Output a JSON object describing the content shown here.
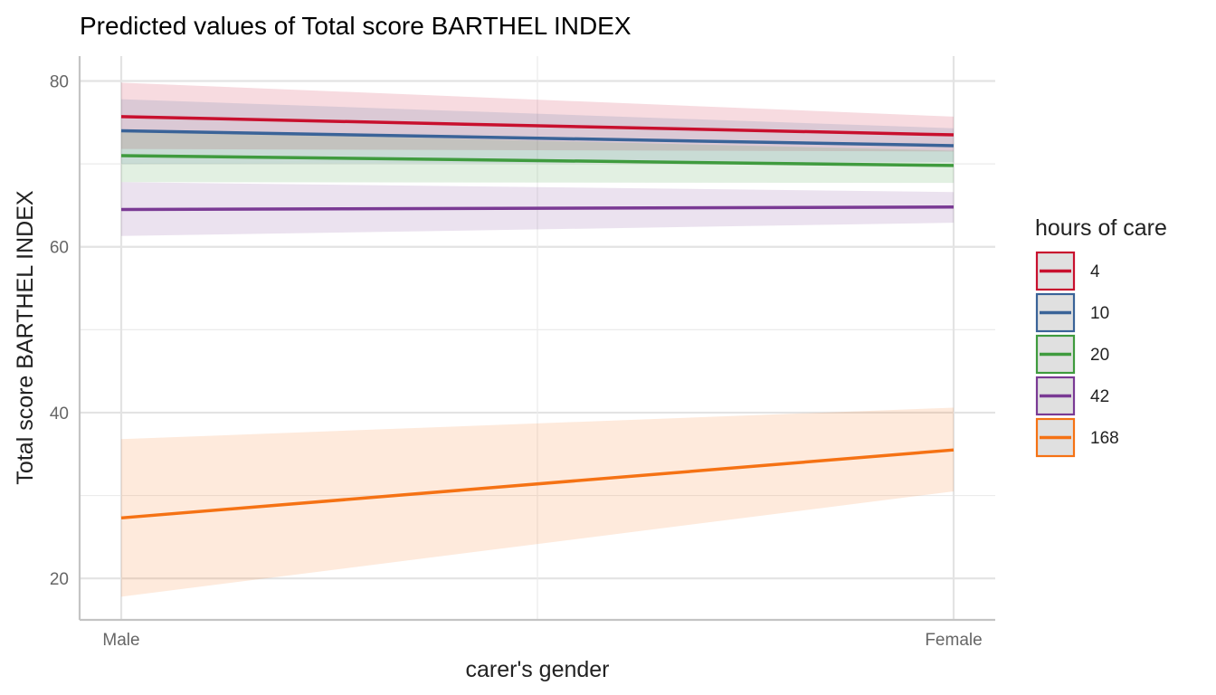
{
  "chart_data": {
    "type": "line",
    "title": "Predicted values of Total score BARTHEL INDEX",
    "xlabel": "carer's gender",
    "ylabel": "Total score BARTHEL INDEX",
    "categories": [
      "Male",
      "Female"
    ],
    "ylim": [
      15,
      83
    ],
    "yticks": [
      20,
      40,
      60,
      80
    ],
    "grid": true,
    "legend": {
      "title": "hours of care",
      "position": "right"
    },
    "series": [
      {
        "name": "4",
        "color": "#C8102E",
        "values": [
          75.7,
          73.5
        ],
        "ci_low": [
          71.8,
          71.5
        ],
        "ci_high": [
          79.8,
          75.7
        ]
      },
      {
        "name": "10",
        "color": "#3A6398",
        "values": [
          74.0,
          72.2
        ],
        "ci_low": [
          70.0,
          70.2
        ],
        "ci_high": [
          77.8,
          74.3
        ]
      },
      {
        "name": "20",
        "color": "#3F9B3E",
        "values": [
          71.0,
          69.8
        ],
        "ci_low": [
          67.8,
          67.7
        ],
        "ci_high": [
          74.0,
          71.6
        ]
      },
      {
        "name": "42",
        "color": "#7A3A94",
        "values": [
          64.5,
          64.8
        ],
        "ci_low": [
          61.3,
          62.9
        ],
        "ci_high": [
          67.8,
          66.6
        ]
      },
      {
        "name": "168",
        "color": "#F57214",
        "values": [
          27.3,
          35.5
        ],
        "ci_low": [
          17.8,
          30.5
        ],
        "ci_high": [
          36.8,
          40.6
        ]
      }
    ]
  }
}
